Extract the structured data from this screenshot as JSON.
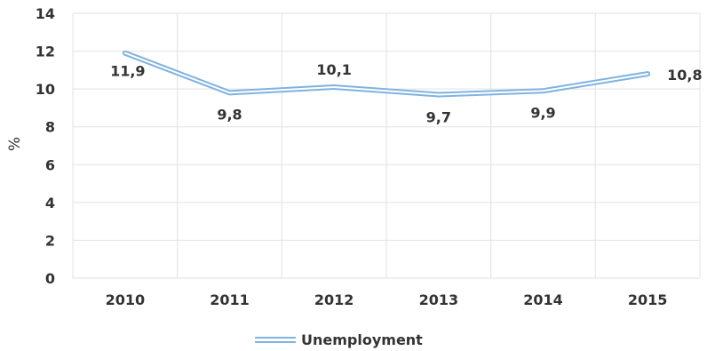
{
  "chart_data": {
    "type": "line",
    "categories": [
      "2010",
      "2011",
      "2012",
      "2013",
      "2014",
      "2015"
    ],
    "series": [
      {
        "name": "Unemployment",
        "values": [
          11.9,
          9.8,
          10.1,
          9.7,
          9.9,
          10.8
        ],
        "data_labels": [
          "11,9",
          "9,8",
          "10,1",
          "9,7",
          "9,9",
          "10,8"
        ]
      }
    ],
    "ylabel": "%",
    "ylim": [
      0,
      14
    ],
    "yticks": [
      0,
      2,
      4,
      6,
      8,
      10,
      12,
      14
    ],
    "grid": true,
    "legend_position": "bottom",
    "colors": {
      "series": "#7fb3e0",
      "grid": "#e2e2e2",
      "text": "#333333"
    }
  }
}
